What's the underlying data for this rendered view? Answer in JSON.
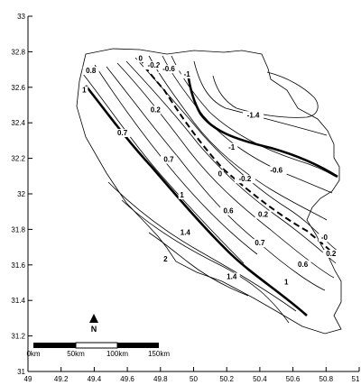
{
  "chart_data": {
    "type": "contour map",
    "title": "",
    "xlabel": "",
    "ylabel": "",
    "xlim": [
      49,
      51
    ],
    "ylim": [
      31,
      33
    ],
    "x_ticks": [
      "49",
      "49.2",
      "49.4",
      "49.6",
      "49.8",
      "50",
      "50.2",
      "50.4",
      "50.6",
      "50.8",
      "51"
    ],
    "y_ticks": [
      "31",
      "31.2",
      "31.4",
      "31.6",
      "31.8",
      "32",
      "32.2",
      "32.4",
      "32.6",
      "32.8",
      "33"
    ],
    "contour_labels": [
      {
        "text": "0.8",
        "lon": 49.38,
        "lat": 32.68
      },
      {
        "text": "0",
        "lon": 49.68,
        "lat": 32.75
      },
      {
        "text": "-0.2",
        "lon": 49.76,
        "lat": 32.71
      },
      {
        "text": "-0.6",
        "lon": 49.85,
        "lat": 32.69
      },
      {
        "text": "-1",
        "lon": 49.96,
        "lat": 32.66
      },
      {
        "text": "1",
        "lon": 49.34,
        "lat": 32.57
      },
      {
        "text": "0.2",
        "lon": 49.77,
        "lat": 32.46
      },
      {
        "text": "0.7",
        "lon": 49.57,
        "lat": 32.33
      },
      {
        "text": "-1.4",
        "lon": 50.36,
        "lat": 32.43
      },
      {
        "text": "-1",
        "lon": 50.23,
        "lat": 32.25
      },
      {
        "text": "0.7",
        "lon": 49.85,
        "lat": 32.18
      },
      {
        "text": "-0.6",
        "lon": 50.5,
        "lat": 32.12
      },
      {
        "text": "0",
        "lon": 50.16,
        "lat": 32.1
      },
      {
        "text": "-0.2",
        "lon": 50.31,
        "lat": 32.07
      },
      {
        "text": "1",
        "lon": 49.93,
        "lat": 31.98
      },
      {
        "text": "0.6",
        "lon": 50.21,
        "lat": 31.89
      },
      {
        "text": "0.2",
        "lon": 50.42,
        "lat": 31.87
      },
      {
        "text": "1.4",
        "lon": 49.95,
        "lat": 31.77
      },
      {
        "text": "0.7",
        "lon": 50.4,
        "lat": 31.71
      },
      {
        "text": "-0",
        "lon": 50.79,
        "lat": 31.74
      },
      {
        "text": "0.2",
        "lon": 50.83,
        "lat": 31.65
      },
      {
        "text": "2",
        "lon": 49.83,
        "lat": 31.62
      },
      {
        "text": "0.6",
        "lon": 50.66,
        "lat": 31.59
      },
      {
        "text": "1.4",
        "lon": 50.23,
        "lat": 31.52
      },
      {
        "text": "1",
        "lon": 50.56,
        "lat": 31.49
      }
    ]
  },
  "scale_bar": {
    "labels": [
      "0km",
      "50km",
      "100km",
      "150km"
    ]
  },
  "north_arrow": {
    "label": "N"
  }
}
